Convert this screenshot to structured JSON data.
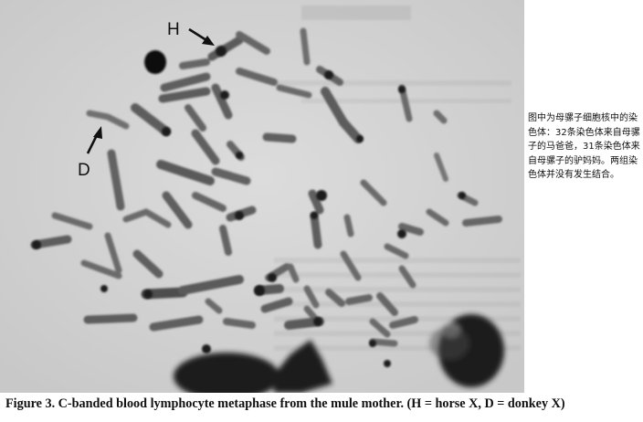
{
  "figure": {
    "marker_h": "H",
    "marker_d": "D",
    "side_note": "图中为母骡子细胞核中的染色体：32条染色体来自母骡子的马爸爸，31条染色体来自母骡子的驴妈妈。两组染色体并没有发生结合。",
    "caption": "Figure 3. C-banded blood lymphocyte metaphase from the mule mother. (H = horse X, D = donkey X)"
  }
}
